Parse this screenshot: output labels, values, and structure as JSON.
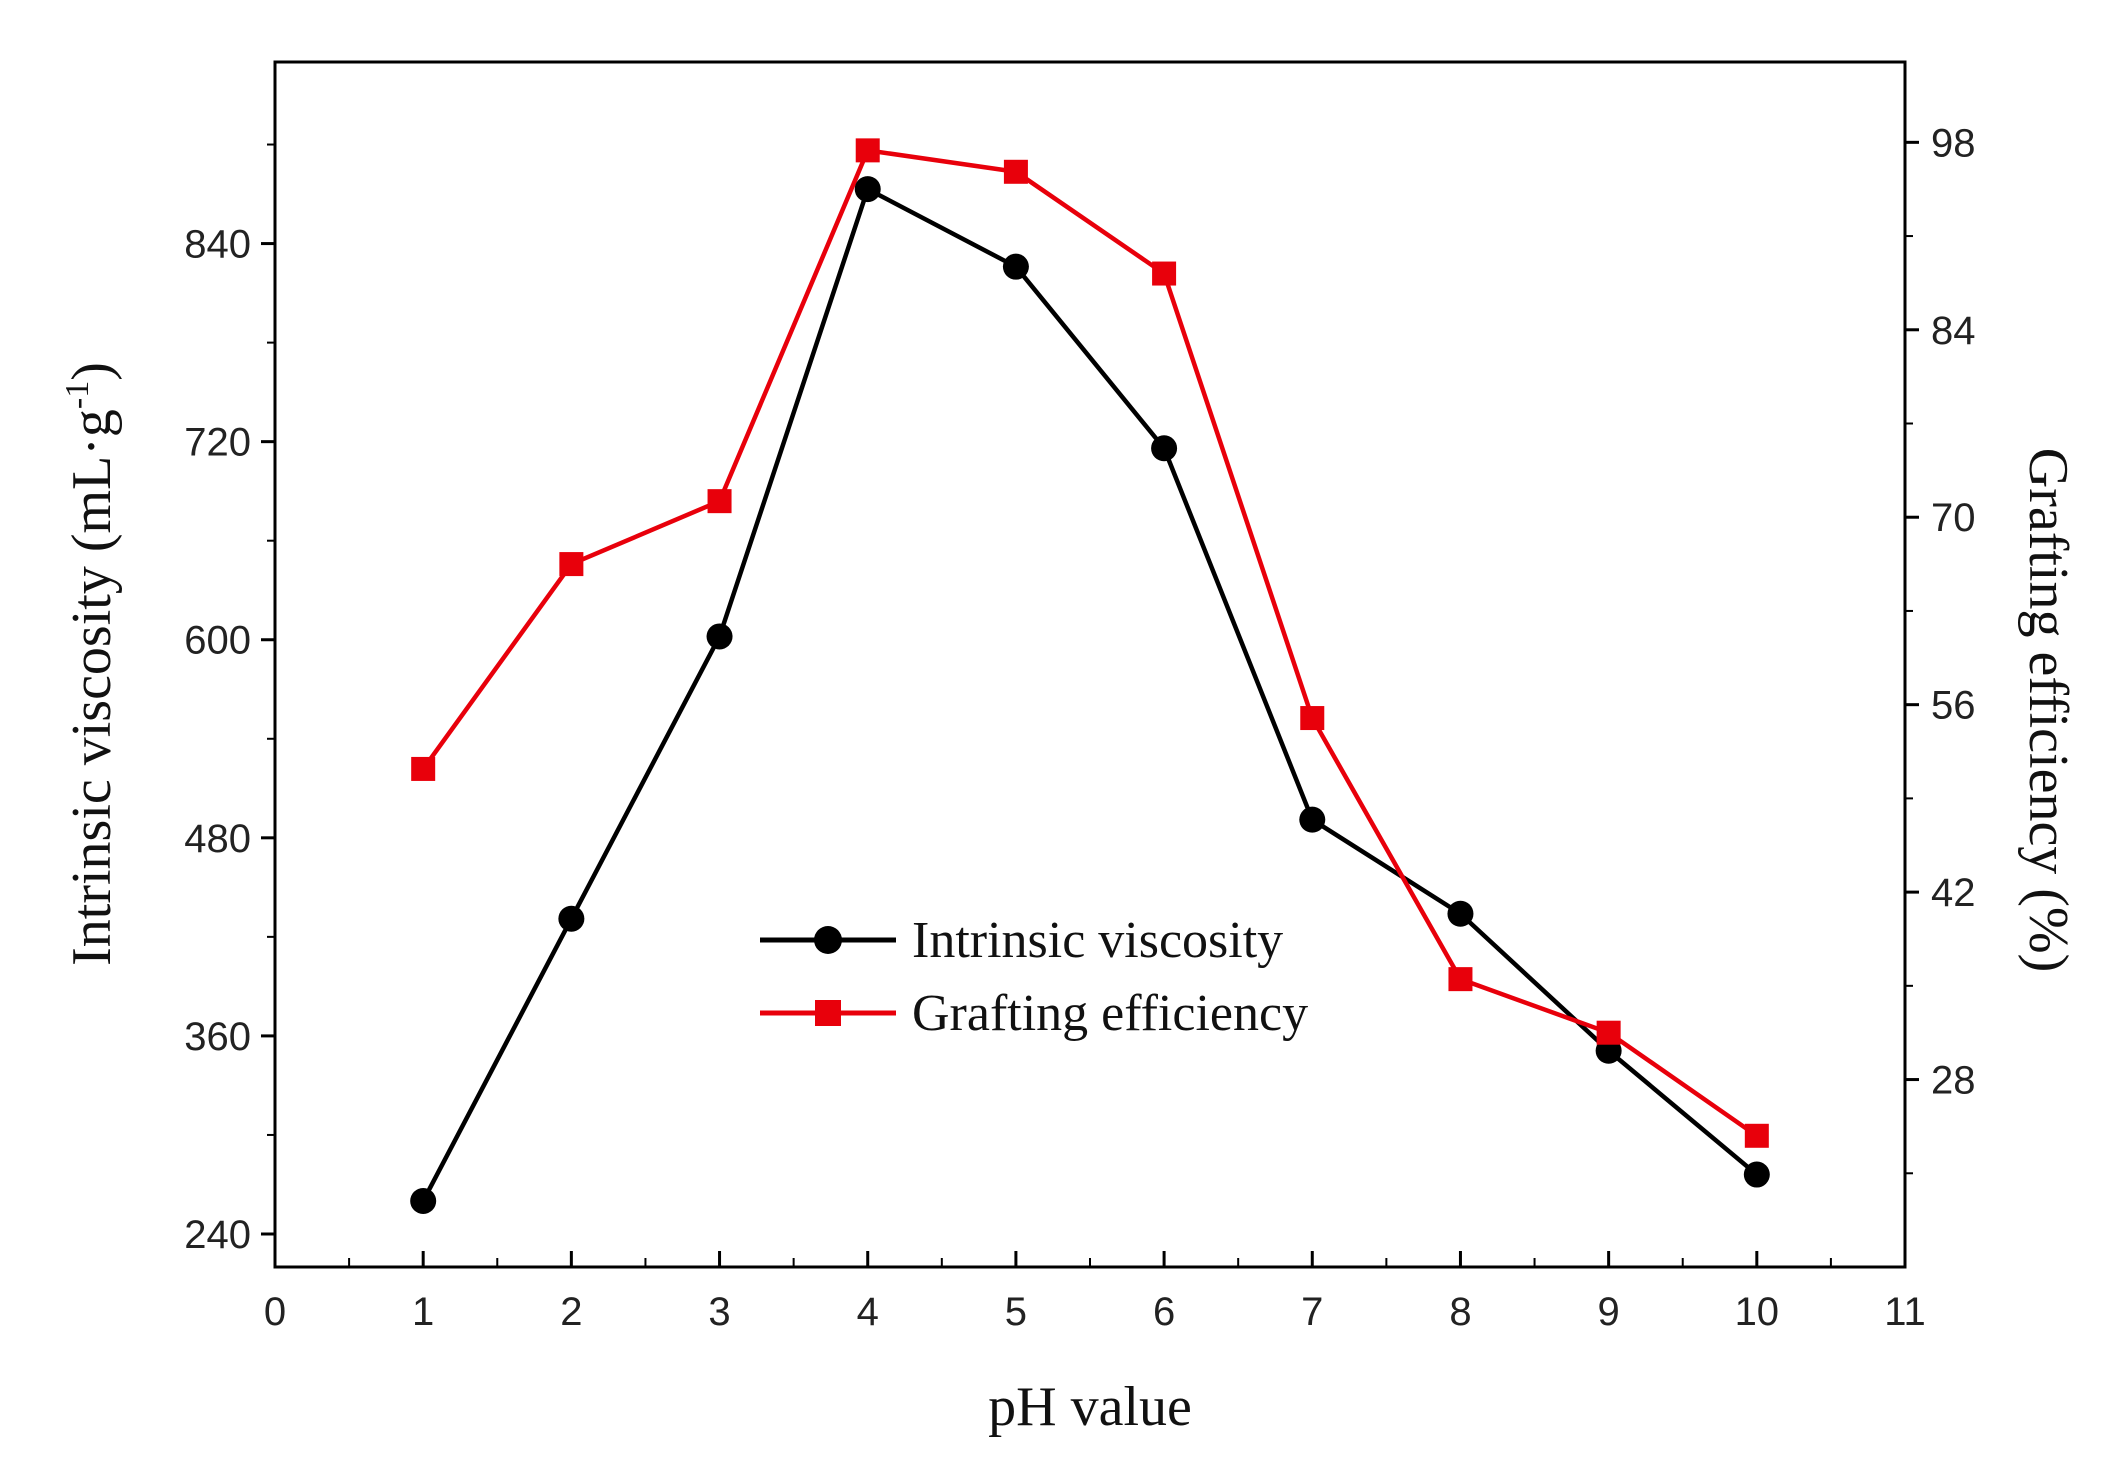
{
  "chart_data": {
    "type": "line",
    "title": "",
    "xlabel": "pH value",
    "ylabel_left": "Intrinsic viscosity (mL·g",
    "ylabel_left_sup": "-1",
    "ylabel_left_close": ")",
    "ylabel_right": "Grafting efficiency (%)",
    "xlim": [
      0,
      11
    ],
    "ylim_left": [
      220,
      950
    ],
    "ylim_right": [
      14,
      104
    ],
    "x_ticks": [
      "0",
      "1",
      "2",
      "3",
      "4",
      "5",
      "6",
      "7",
      "8",
      "9",
      "10",
      "11"
    ],
    "y_left_ticks": [
      "240",
      "360",
      "480",
      "600",
      "720",
      "840"
    ],
    "y_right_ticks": [
      "28",
      "42",
      "56",
      "70",
      "84",
      "98"
    ],
    "series": [
      {
        "name": "Intrinsic viscosity",
        "axis": "left",
        "color": "#000000",
        "marker": "circle",
        "x": [
          1,
          2,
          3,
          4,
          5,
          6,
          7,
          8,
          9,
          10
        ],
        "values": [
          260,
          431,
          602,
          873,
          826,
          716,
          491,
          434,
          351,
          276
        ]
      },
      {
        "name": "Grafting efficiency",
        "axis": "right",
        "color": "#e8000b",
        "marker": "square",
        "x": [
          1,
          2,
          3,
          4,
          5,
          6,
          7,
          8,
          9,
          10
        ],
        "values": [
          51.2,
          66.5,
          71.2,
          97.4,
          95.8,
          88.2,
          55.0,
          35.5,
          31.5,
          23.8
        ]
      }
    ],
    "legend": {
      "placement": "center-right",
      "entries": [
        "Intrinsic viscosity",
        "Grafting efficiency"
      ]
    },
    "grid": false
  }
}
